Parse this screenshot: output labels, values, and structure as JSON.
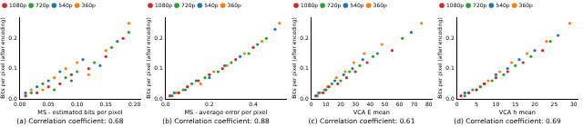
{
  "chart_data": [
    {
      "type": "scatter",
      "title": "(a) Correlation coefficient: 0.68",
      "x_label": "MS - estimated bits per pixel",
      "y_label": "Bits per pixel (after encoding)",
      "xlim": [
        0,
        0.21
      ],
      "ylim": [
        0,
        0.27
      ],
      "xticks": [
        {
          "value": 0,
          "label": "0.00"
        },
        {
          "value": 0.05,
          "label": "0.05"
        },
        {
          "value": 0.1,
          "label": "0.10"
        },
        {
          "value": 0.15,
          "label": "0.15"
        },
        {
          "value": 0.2,
          "label": "0.20"
        }
      ],
      "yticks": [
        {
          "value": 0,
          "label": "0.0"
        },
        0.1,
        0.2
      ],
      "grid": false,
      "legend": "upper left",
      "series": [
        {
          "name": "1080p",
          "color": "#d62728",
          "values": [
            [
              0.01,
              0.01
            ],
            [
              0.03,
              0.02
            ],
            [
              0.05,
              0.04
            ],
            [
              0.07,
              0.05
            ],
            [
              0.09,
              0.08
            ],
            [
              0.12,
              0.1
            ],
            [
              0.15,
              0.14
            ],
            [
              0.18,
              0.2
            ]
          ]
        },
        {
          "name": "720p",
          "color": "#2ca02c",
          "values": [
            [
              0.02,
              0.02
            ],
            [
              0.04,
              0.05
            ],
            [
              0.06,
              0.03
            ],
            [
              0.08,
              0.07
            ],
            [
              0.1,
              0.09
            ],
            [
              0.13,
              0.12
            ],
            [
              0.16,
              0.17
            ],
            [
              0.19,
              0.22
            ]
          ]
        },
        {
          "name": "540p",
          "color": "#1f77b4",
          "values": [
            [
              0.01,
              0.02
            ],
            [
              0.03,
              0.04
            ],
            [
              0.05,
              0.06
            ],
            [
              0.07,
              0.09
            ],
            [
              0.09,
              0.06
            ],
            [
              0.11,
              0.13
            ],
            [
              0.14,
              0.11
            ],
            [
              0.17,
              0.19
            ]
          ]
        },
        {
          "name": "360p",
          "color": "#ff7f0e",
          "values": [
            [
              0.02,
              0.03
            ],
            [
              0.04,
              0.03
            ],
            [
              0.06,
              0.07
            ],
            [
              0.08,
              0.1
            ],
            [
              0.1,
              0.12
            ],
            [
              0.12,
              0.08
            ],
            [
              0.15,
              0.16
            ],
            [
              0.19,
              0.25
            ]
          ]
        }
      ]
    },
    {
      "type": "scatter",
      "title": "(b) Correlation coefficient: 0.88",
      "x_label": "MS - average error per pixel",
      "y_label": "Bits per pixel (after encoding)",
      "xlim": [
        0,
        0.55
      ],
      "ylim": [
        0,
        0.27
      ],
      "xticks": [
        {
          "value": 0,
          "label": "0.0"
        },
        0.2,
        0.4
      ],
      "yticks": [
        {
          "value": 0,
          "label": "0.0"
        },
        0.1,
        0.2
      ],
      "grid": false,
      "legend": "upper left",
      "series": [
        {
          "name": "1080p",
          "color": "#d62728",
          "values": [
            [
              0.02,
              0.01
            ],
            [
              0.06,
              0.02
            ],
            [
              0.1,
              0.04
            ],
            [
              0.15,
              0.06
            ],
            [
              0.2,
              0.08
            ],
            [
              0.26,
              0.1
            ],
            [
              0.32,
              0.13
            ],
            [
              0.4,
              0.17
            ]
          ]
        },
        {
          "name": "720p",
          "color": "#2ca02c",
          "values": [
            [
              0.03,
              0.01
            ],
            [
              0.08,
              0.03
            ],
            [
              0.12,
              0.05
            ],
            [
              0.18,
              0.07
            ],
            [
              0.24,
              0.09
            ],
            [
              0.3,
              0.12
            ],
            [
              0.38,
              0.15
            ],
            [
              0.46,
              0.2
            ]
          ]
        },
        {
          "name": "540p",
          "color": "#1f77b4",
          "values": [
            [
              0.04,
              0.02
            ],
            [
              0.09,
              0.03
            ],
            [
              0.14,
              0.06
            ],
            [
              0.2,
              0.07
            ],
            [
              0.27,
              0.11
            ],
            [
              0.34,
              0.14
            ],
            [
              0.42,
              0.18
            ],
            [
              0.5,
              0.23
            ]
          ]
        },
        {
          "name": "360p",
          "color": "#ff7f0e",
          "values": [
            [
              0.05,
              0.02
            ],
            [
              0.1,
              0.04
            ],
            [
              0.16,
              0.05
            ],
            [
              0.22,
              0.09
            ],
            [
              0.28,
              0.11
            ],
            [
              0.36,
              0.15
            ],
            [
              0.44,
              0.19
            ],
            [
              0.52,
              0.25
            ]
          ]
        }
      ]
    },
    {
      "type": "scatter",
      "title": "(c) Correlation coefficient: 0.61",
      "x_label": "VCA E mean",
      "y_label": "Bits per pixel (after encoding)",
      "xlim": [
        0,
        82
      ],
      "ylim": [
        0,
        0.27
      ],
      "xticks": [
        0,
        10,
        20,
        30,
        40,
        50,
        60,
        70,
        80
      ],
      "yticks": [
        {
          "value": 0,
          "label": "0.0"
        },
        0.1,
        0.2
      ],
      "grid": false,
      "legend": "upper left",
      "series": [
        {
          "name": "1080p",
          "color": "#d62728",
          "values": [
            [
              3,
              0.01
            ],
            [
              8,
              0.02
            ],
            [
              12,
              0.04
            ],
            [
              18,
              0.05
            ],
            [
              24,
              0.07
            ],
            [
              30,
              0.09
            ],
            [
              38,
              0.12
            ],
            [
              55,
              0.16
            ]
          ]
        },
        {
          "name": "720p",
          "color": "#2ca02c",
          "values": [
            [
              4,
              0.01
            ],
            [
              9,
              0.03
            ],
            [
              14,
              0.05
            ],
            [
              20,
              0.06
            ],
            [
              26,
              0.09
            ],
            [
              33,
              0.11
            ],
            [
              42,
              0.14
            ],
            [
              62,
              0.2
            ]
          ]
        },
        {
          "name": "540p",
          "color": "#1f77b4",
          "values": [
            [
              5,
              0.02
            ],
            [
              10,
              0.03
            ],
            [
              16,
              0.06
            ],
            [
              22,
              0.08
            ],
            [
              28,
              0.1
            ],
            [
              35,
              0.13
            ],
            [
              45,
              0.15
            ],
            [
              68,
              0.22
            ]
          ]
        },
        {
          "name": "360p",
          "color": "#ff7f0e",
          "values": [
            [
              6,
              0.02
            ],
            [
              11,
              0.04
            ],
            [
              17,
              0.07
            ],
            [
              23,
              0.09
            ],
            [
              29,
              0.12
            ],
            [
              36,
              0.15
            ],
            [
              48,
              0.18
            ],
            [
              75,
              0.25
            ]
          ]
        }
      ]
    },
    {
      "type": "scatter",
      "title": "(d) Correlation coefficient: 0.69",
      "x_label": "VCA h mean",
      "y_label": "Bits per pixel (after encoding)",
      "xlim": [
        0,
        31
      ],
      "ylim": [
        0,
        0.27
      ],
      "xticks": [
        0,
        5,
        10,
        15,
        20,
        25,
        30
      ],
      "yticks": [
        {
          "value": 0,
          "label": "0.0"
        },
        0.1,
        0.2
      ],
      "grid": false,
      "legend": "upper left",
      "series": [
        {
          "name": "1080p",
          "color": "#d62728",
          "values": [
            [
              1,
              0.01
            ],
            [
              3,
              0.02
            ],
            [
              5,
              0.03
            ],
            [
              7,
              0.05
            ],
            [
              10,
              0.07
            ],
            [
              13,
              0.09
            ],
            [
              17,
              0.12
            ],
            [
              22,
              0.16
            ]
          ]
        },
        {
          "name": "720p",
          "color": "#2ca02c",
          "values": [
            [
              2,
              0.01
            ],
            [
              4,
              0.03
            ],
            [
              6,
              0.04
            ],
            [
              9,
              0.06
            ],
            [
              12,
              0.08
            ],
            [
              15,
              0.11
            ],
            [
              19,
              0.14
            ],
            [
              24,
              0.19
            ]
          ]
        },
        {
          "name": "540p",
          "color": "#1f77b4",
          "values": [
            [
              2,
              0.02
            ],
            [
              5,
              0.03
            ],
            [
              7,
              0.05
            ],
            [
              10,
              0.08
            ],
            [
              13,
              0.1
            ],
            [
              16,
              0.13
            ],
            [
              20,
              0.16
            ],
            [
              26,
              0.21
            ]
          ]
        },
        {
          "name": "360p",
          "color": "#ff7f0e",
          "values": [
            [
              3,
              0.02
            ],
            [
              6,
              0.04
            ],
            [
              8,
              0.06
            ],
            [
              11,
              0.09
            ],
            [
              14,
              0.12
            ],
            [
              18,
              0.15
            ],
            [
              23,
              0.19
            ],
            [
              29,
              0.25
            ]
          ]
        }
      ]
    }
  ]
}
